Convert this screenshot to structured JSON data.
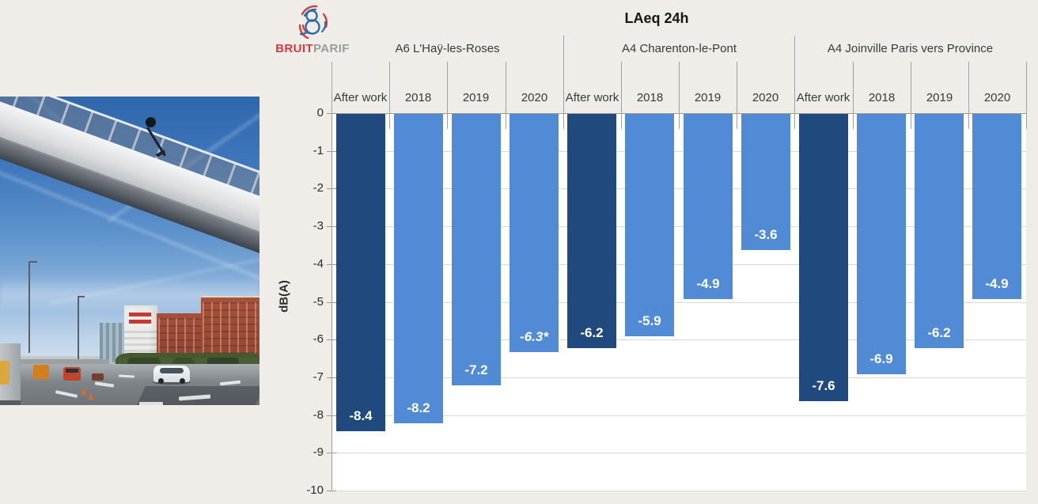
{
  "logo": {
    "brand_primary": "BRUIT",
    "brand_secondary": "PARIF"
  },
  "chart_data": {
    "type": "bar",
    "title": "LAeq 24h",
    "ylabel": "dB(A)",
    "ylim": [
      -10,
      0
    ],
    "grid": true,
    "legend_position": "none",
    "yticks": [
      "0",
      "-1",
      "-2",
      "-3",
      "-4",
      "-5",
      "-6",
      "-7",
      "-8",
      "-9",
      "-10"
    ],
    "column_headers": [
      "After work",
      "2018",
      "2019",
      "2020"
    ],
    "groups": [
      {
        "label": "A6 L'Haÿ-les-Roses",
        "categories": [
          "After work",
          "2018",
          "2019",
          "2020"
        ],
        "values": [
          -8.4,
          -8.2,
          -7.2,
          -6.3
        ],
        "bars": [
          {
            "category": "After work",
            "value": -8.4,
            "label": "-8.4",
            "color": "dark",
            "italic": false
          },
          {
            "category": "2018",
            "value": -8.2,
            "label": "-8.2",
            "color": "light",
            "italic": false
          },
          {
            "category": "2019",
            "value": -7.2,
            "label": "-7.2",
            "color": "light",
            "italic": false
          },
          {
            "category": "2020",
            "value": -6.3,
            "label": "-6.3*",
            "color": "light",
            "italic": true
          }
        ]
      },
      {
        "label": "A4 Charenton-le-Pont",
        "categories": [
          "After work",
          "2018",
          "2019",
          "2020"
        ],
        "values": [
          -6.2,
          -5.9,
          -4.9,
          -3.6
        ],
        "bars": [
          {
            "category": "After work",
            "value": -6.2,
            "label": "-6.2",
            "color": "dark",
            "italic": false
          },
          {
            "category": "2018",
            "value": -5.9,
            "label": "-5.9",
            "color": "light",
            "italic": false
          },
          {
            "category": "2019",
            "value": -4.9,
            "label": "-4.9",
            "color": "light",
            "italic": false
          },
          {
            "category": "2020",
            "value": -3.6,
            "label": "-3.6",
            "color": "light",
            "italic": false
          }
        ]
      },
      {
        "label": "A4 Joinville Paris vers Province",
        "categories": [
          "After work",
          "2018",
          "2019",
          "2020"
        ],
        "values": [
          -7.6,
          -6.9,
          -6.2,
          -4.9
        ],
        "bars": [
          {
            "category": "After work",
            "value": -7.6,
            "label": "-7.6",
            "color": "dark",
            "italic": false
          },
          {
            "category": "2018",
            "value": -6.9,
            "label": "-6.9",
            "color": "light",
            "italic": false
          },
          {
            "category": "2019",
            "value": -6.2,
            "label": "-6.2",
            "color": "light",
            "italic": false
          },
          {
            "category": "2020",
            "value": -4.9,
            "label": "-4.9",
            "color": "light",
            "italic": false
          }
        ]
      }
    ],
    "colors": {
      "after_work_bar": "#204A7D",
      "year_bar": "#528BD5",
      "plot_bg": "#FFFFFF",
      "page_bg": "#F0EDE8",
      "gridline": "#D9D9D9",
      "axis": "#999999",
      "separator": "#A0A0A0",
      "value_label": "#FFFFFF"
    }
  }
}
